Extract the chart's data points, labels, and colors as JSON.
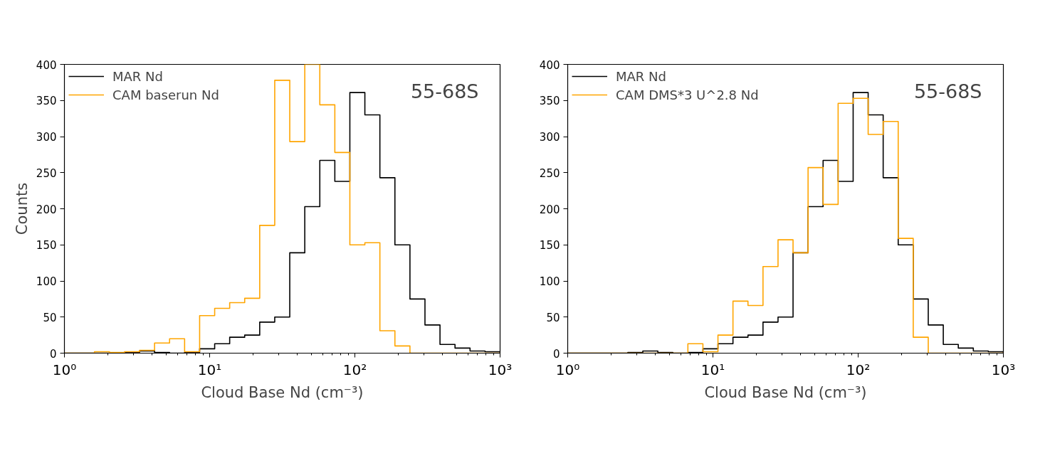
{
  "chart_data": [
    {
      "type": "histogram",
      "xlabel": "Cloud Base Nd (cm⁻³)",
      "ylabel": "Counts",
      "annotations": [
        "55-68S"
      ],
      "log": "x",
      "legend": "top left",
      "bins": [
        1,
        1.269,
        1.61,
        2.043,
        2.593,
        3.29,
        4.175,
        5.298,
        6.723,
        8.532,
        10.83,
        13.74,
        17.43,
        22.12,
        28.07,
        35.62,
        45.2,
        57.36,
        72.79,
        92.37,
        117.2,
        148.7,
        188.7,
        239.5,
        303.9,
        385.7,
        489.4,
        621.1,
        788.1,
        1000
      ],
      "series": [
        {
          "name": "MAR Nd",
          "color": "#000000",
          "values": [
            0,
            0,
            0,
            0,
            1,
            3,
            1,
            0,
            1,
            6,
            13,
            22,
            25,
            43,
            50,
            139,
            203,
            267,
            238,
            361,
            330,
            243,
            150,
            75,
            39,
            12,
            7,
            3,
            2
          ]
        },
        {
          "name": "CAM baserun Nd",
          "color": "#ffa500",
          "values": [
            0,
            0,
            2,
            1,
            2,
            4,
            14,
            20,
            2,
            52,
            62,
            70,
            76,
            177,
            378,
            293,
            400,
            344,
            278,
            150,
            153,
            31,
            10,
            0,
            0,
            0,
            0,
            0,
            0
          ]
        }
      ],
      "xlim": [
        1,
        1000
      ],
      "xticks": [
        {
          "value": 1,
          "label": "10⁰"
        },
        {
          "value": 10,
          "label": "10¹"
        },
        {
          "value": 100,
          "label": "10²"
        },
        {
          "value": 1000,
          "label": "10³"
        }
      ],
      "ylim": [
        0,
        400
      ],
      "yticks": [
        0,
        50,
        100,
        150,
        200,
        250,
        300,
        350,
        400
      ]
    },
    {
      "type": "histogram",
      "xlabel": "Cloud Base Nd (cm⁻³)",
      "annotations": [
        "55-68S"
      ],
      "log": "x",
      "legend": "top left",
      "bins": [
        1,
        1.269,
        1.61,
        2.043,
        2.593,
        3.29,
        4.175,
        5.298,
        6.723,
        8.532,
        10.83,
        13.74,
        17.43,
        22.12,
        28.07,
        35.62,
        45.2,
        57.36,
        72.79,
        92.37,
        117.2,
        148.7,
        188.7,
        239.5,
        303.9,
        385.7,
        489.4,
        621.1,
        788.1,
        1000
      ],
      "series": [
        {
          "name": "MAR Nd",
          "color": "#000000",
          "values": [
            0,
            0,
            0,
            0,
            1,
            3,
            1,
            0,
            1,
            6,
            13,
            22,
            25,
            43,
            50,
            139,
            203,
            267,
            238,
            361,
            330,
            243,
            150,
            75,
            39,
            12,
            7,
            3,
            2
          ]
        },
        {
          "name": "CAM DMS*3 U^2.8 Nd",
          "color": "#ffa500",
          "values": [
            0,
            0,
            0,
            0,
            0,
            0,
            0,
            0,
            13,
            2,
            25,
            72,
            66,
            120,
            157,
            139,
            257,
            206,
            346,
            353,
            303,
            321,
            159,
            22,
            0,
            0,
            0,
            0,
            0
          ]
        }
      ],
      "xlim": [
        1,
        1000
      ],
      "xticks": [
        {
          "value": 1,
          "label": "10⁰"
        },
        {
          "value": 10,
          "label": "10¹"
        },
        {
          "value": 100,
          "label": "10²"
        },
        {
          "value": 1000,
          "label": "10³"
        }
      ],
      "ylim": [
        0,
        400
      ],
      "yticks": [
        0,
        50,
        100,
        150,
        200,
        250,
        300,
        350,
        400
      ]
    }
  ]
}
